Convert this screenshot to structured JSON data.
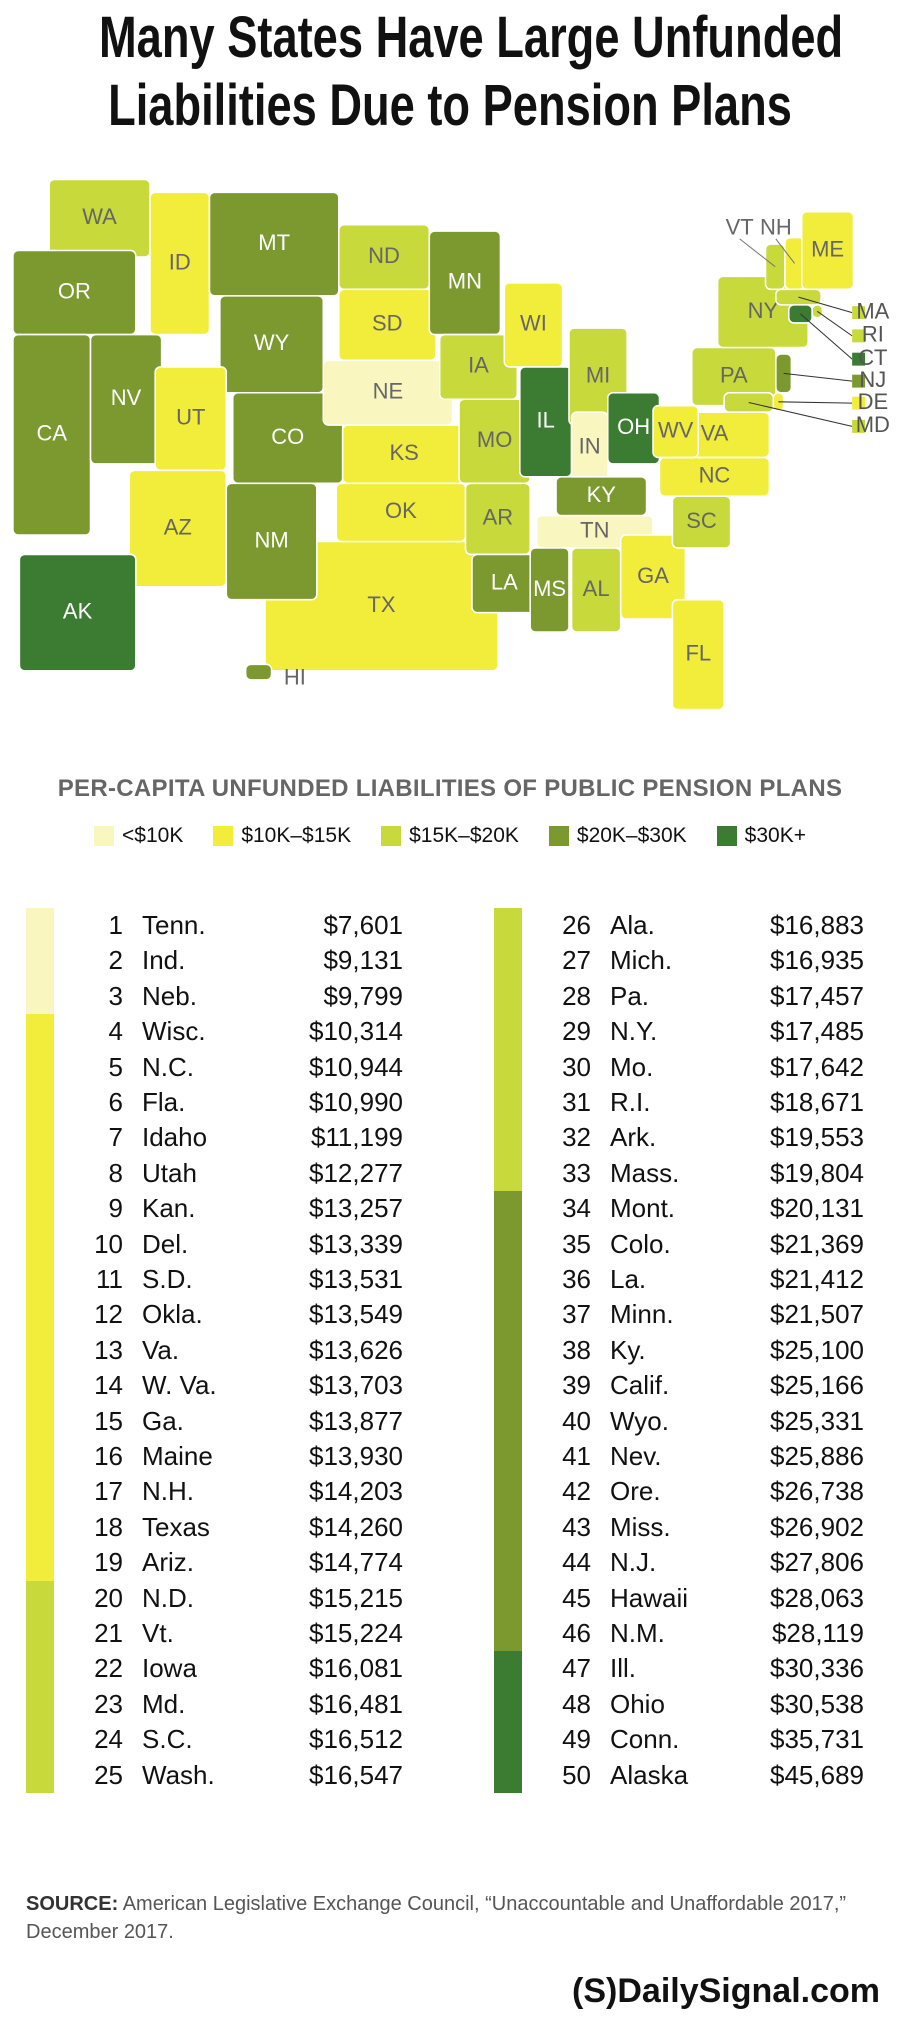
{
  "header": {
    "title": [
      "Many States Have Large Unfunded",
      "Liabilities Due to Pension Plans"
    ]
  },
  "map": {
    "states": [
      {
        "label": "TX",
        "color": "#f2ec3b"
      },
      {
        "label": "WA",
        "color": "#c8d93b"
      },
      {
        "label": "OR",
        "color": "#7b992f"
      },
      {
        "label": "CA",
        "color": "#7b992f"
      },
      {
        "label": "NV",
        "color": "#7b992f"
      },
      {
        "label": "ID",
        "color": "#f2ec3b"
      },
      {
        "label": "MT",
        "color": "#7b992f"
      },
      {
        "label": "WY",
        "color": "#7b992f"
      },
      {
        "label": "UT",
        "color": "#f2ec3b"
      },
      {
        "label": "CO",
        "color": "#7b992f"
      },
      {
        "label": "AZ",
        "color": "#f2ec3b"
      },
      {
        "label": "NM",
        "color": "#7b992f"
      },
      {
        "label": "ND",
        "color": "#c8d93b"
      },
      {
        "label": "SD",
        "color": "#f2ec3b"
      },
      {
        "label": "NE",
        "color": "#faf6c0"
      },
      {
        "label": "KS",
        "color": "#f2ec3b"
      },
      {
        "label": "OK",
        "color": "#f2ec3b"
      },
      {
        "label": "MN",
        "color": "#7b992f"
      },
      {
        "label": "IA",
        "color": "#c8d93b"
      },
      {
        "label": "MO",
        "color": "#c8d93b"
      },
      {
        "label": "AR",
        "color": "#c8d93b"
      },
      {
        "label": "LA",
        "color": "#7b992f"
      },
      {
        "label": "WI",
        "color": "#f2ec3b"
      },
      {
        "label": "IL",
        "color": "#3b7c32"
      },
      {
        "label": "MI",
        "color": "#c8d93b"
      },
      {
        "label": "IN",
        "color": "#faf6c0"
      },
      {
        "label": "OH",
        "color": "#3b7c32"
      },
      {
        "label": "KY",
        "color": "#7b992f"
      },
      {
        "label": "TN",
        "color": "#faf6c0"
      },
      {
        "label": "MS",
        "color": "#7b992f"
      },
      {
        "label": "AL",
        "color": "#c8d93b"
      },
      {
        "label": "GA",
        "color": "#f2ec3b"
      },
      {
        "label": "FL",
        "color": "#f2ec3b"
      },
      {
        "label": "SC",
        "color": "#c8d93b"
      },
      {
        "label": "NC",
        "color": "#f2ec3b"
      },
      {
        "label": "VA",
        "color": "#f2ec3b"
      },
      {
        "label": "WV",
        "color": "#f2ec3b"
      },
      {
        "label": "PA",
        "color": "#c8d93b"
      },
      {
        "label": "NY",
        "color": "#c8d93b"
      },
      {
        "label": "VT",
        "color": "#c8d93b"
      },
      {
        "label": "NH",
        "color": "#f2ec3b"
      },
      {
        "label": "ME",
        "color": "#f2ec3b"
      },
      {
        "label": "MA",
        "color": "#c8d93b"
      },
      {
        "label": "RI",
        "color": "#c8d93b"
      },
      {
        "label": "CT",
        "color": "#3b7c32"
      },
      {
        "label": "NJ",
        "color": "#7b992f"
      },
      {
        "label": "DE",
        "color": "#f2ec3b"
      },
      {
        "label": "MD",
        "color": "#c8d93b"
      },
      {
        "label": "AK",
        "color": "#3b7c32"
      },
      {
        "label": "HI",
        "color": "#7b992f"
      }
    ]
  },
  "legend": {
    "title": "PER-CAPITA UNFUNDED LIABILITIES OF PUBLIC PENSION PLANS",
    "items": [
      {
        "label": "<$10K",
        "color": "#faf6c0"
      },
      {
        "label": "$10K–$15K",
        "color": "#f2ec3b"
      },
      {
        "label": "$15K–$20K",
        "color": "#c8d93b"
      },
      {
        "label": "$20K–$30K",
        "color": "#7b992f"
      },
      {
        "label": "$30K+",
        "color": "#3b7c32"
      }
    ]
  },
  "table": {
    "rows": [
      {
        "rank": "1",
        "state": "Tenn.",
        "value": "$7,601",
        "color": "#faf6c0"
      },
      {
        "rank": "2",
        "state": "Ind.",
        "value": "$9,131",
        "color": "#faf6c0"
      },
      {
        "rank": "3",
        "state": "Neb.",
        "value": "$9,799",
        "color": "#faf6c0"
      },
      {
        "rank": "4",
        "state": "Wisc.",
        "value": "$10,314",
        "color": "#f2ec3b"
      },
      {
        "rank": "5",
        "state": "N.C.",
        "value": "$10,944",
        "color": "#f2ec3b"
      },
      {
        "rank": "6",
        "state": "Fla.",
        "value": "$10,990",
        "color": "#f2ec3b"
      },
      {
        "rank": "7",
        "state": "Idaho",
        "value": "$11,199",
        "color": "#f2ec3b"
      },
      {
        "rank": "8",
        "state": "Utah",
        "value": "$12,277",
        "color": "#f2ec3b"
      },
      {
        "rank": "9",
        "state": "Kan.",
        "value": "$13,257",
        "color": "#f2ec3b"
      },
      {
        "rank": "10",
        "state": "Del.",
        "value": "$13,339",
        "color": "#f2ec3b"
      },
      {
        "rank": "11",
        "state": "S.D.",
        "value": "$13,531",
        "color": "#f2ec3b"
      },
      {
        "rank": "12",
        "state": "Okla.",
        "value": "$13,549",
        "color": "#f2ec3b"
      },
      {
        "rank": "13",
        "state": "Va.",
        "value": "$13,626",
        "color": "#f2ec3b"
      },
      {
        "rank": "14",
        "state": "W. Va.",
        "value": "$13,703",
        "color": "#f2ec3b"
      },
      {
        "rank": "15",
        "state": "Ga.",
        "value": "$13,877",
        "color": "#f2ec3b"
      },
      {
        "rank": "16",
        "state": "Maine",
        "value": "$13,930",
        "color": "#f2ec3b"
      },
      {
        "rank": "17",
        "state": "N.H.",
        "value": "$14,203",
        "color": "#f2ec3b"
      },
      {
        "rank": "18",
        "state": "Texas",
        "value": "$14,260",
        "color": "#f2ec3b"
      },
      {
        "rank": "19",
        "state": "Ariz.",
        "value": "$14,774",
        "color": "#f2ec3b"
      },
      {
        "rank": "20",
        "state": "N.D.",
        "value": "$15,215",
        "color": "#c8d93b"
      },
      {
        "rank": "21",
        "state": "Vt.",
        "value": "$15,224",
        "color": "#c8d93b"
      },
      {
        "rank": "22",
        "state": "Iowa",
        "value": "$16,081",
        "color": "#c8d93b"
      },
      {
        "rank": "23",
        "state": "Md.",
        "value": "$16,481",
        "color": "#c8d93b"
      },
      {
        "rank": "24",
        "state": "S.C.",
        "value": "$16,512",
        "color": "#c8d93b"
      },
      {
        "rank": "25",
        "state": "Wash.",
        "value": "$16,547",
        "color": "#c8d93b"
      },
      {
        "rank": "26",
        "state": "Ala.",
        "value": "$16,883",
        "color": "#c8d93b"
      },
      {
        "rank": "27",
        "state": "Mich.",
        "value": "$16,935",
        "color": "#c8d93b"
      },
      {
        "rank": "28",
        "state": "Pa.",
        "value": "$17,457",
        "color": "#c8d93b"
      },
      {
        "rank": "29",
        "state": "N.Y.",
        "value": "$17,485",
        "color": "#c8d93b"
      },
      {
        "rank": "30",
        "state": "Mo.",
        "value": "$17,642",
        "color": "#c8d93b"
      },
      {
        "rank": "31",
        "state": "R.I.",
        "value": "$18,671",
        "color": "#c8d93b"
      },
      {
        "rank": "32",
        "state": "Ark.",
        "value": "$19,553",
        "color": "#c8d93b"
      },
      {
        "rank": "33",
        "state": "Mass.",
        "value": "$19,804",
        "color": "#c8d93b"
      },
      {
        "rank": "34",
        "state": "Mont.",
        "value": "$20,131",
        "color": "#7b992f"
      },
      {
        "rank": "35",
        "state": "Colo.",
        "value": "$21,369",
        "color": "#7b992f"
      },
      {
        "rank": "36",
        "state": "La.",
        "value": "$21,412",
        "color": "#7b992f"
      },
      {
        "rank": "37",
        "state": "Minn.",
        "value": "$21,507",
        "color": "#7b992f"
      },
      {
        "rank": "38",
        "state": "Ky.",
        "value": "$25,100",
        "color": "#7b992f"
      },
      {
        "rank": "39",
        "state": "Calif.",
        "value": "$25,166",
        "color": "#7b992f"
      },
      {
        "rank": "40",
        "state": "Wyo.",
        "value": "$25,331",
        "color": "#7b992f"
      },
      {
        "rank": "41",
        "state": "Nev.",
        "value": "$25,886",
        "color": "#7b992f"
      },
      {
        "rank": "42",
        "state": "Ore.",
        "value": "$26,738",
        "color": "#7b992f"
      },
      {
        "rank": "43",
        "state": "Miss.",
        "value": "$26,902",
        "color": "#7b992f"
      },
      {
        "rank": "44",
        "state": "N.J.",
        "value": "$27,806",
        "color": "#7b992f"
      },
      {
        "rank": "45",
        "state": "Hawaii",
        "value": "$28,063",
        "color": "#7b992f"
      },
      {
        "rank": "46",
        "state": "N.M.",
        "value": "$28,119",
        "color": "#7b992f"
      },
      {
        "rank": "47",
        "state": "Ill.",
        "value": "$30,336",
        "color": "#3b7c32"
      },
      {
        "rank": "48",
        "state": "Ohio",
        "value": "$30,538",
        "color": "#3b7c32"
      },
      {
        "rank": "49",
        "state": "Conn.",
        "value": "$35,731",
        "color": "#3b7c32"
      },
      {
        "rank": "50",
        "state": "Alaska",
        "value": "$45,689",
        "color": "#3b7c32"
      }
    ]
  },
  "source": {
    "label": "SOURCE:",
    "text": "American Legislative Exchange Council, “Unaccountable and Unaffordable 2017,” December 2017."
  },
  "logo": {
    "mark": "(S)",
    "text": "DailySignal.com"
  }
}
